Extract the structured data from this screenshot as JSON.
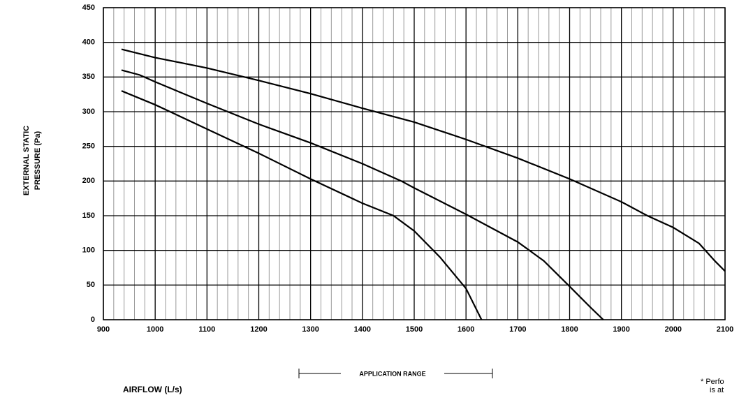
{
  "chart_data": {
    "type": "line",
    "ylabel": [
      "EXTERNAL STATIC",
      "PRESSURE (Pa)"
    ],
    "xlabel": "AIRFLOW (L/s)",
    "annotation": "APPLICATION RANGE",
    "footnote": [
      "* Perfo",
      "is at"
    ],
    "xlim": [
      900,
      2100
    ],
    "ylim": [
      0,
      450
    ],
    "xticks": [
      900,
      1000,
      1100,
      1200,
      1300,
      1400,
      1500,
      1600,
      1700,
      1800,
      1900,
      2000,
      2100
    ],
    "xminorticks": [
      920,
      940,
      960,
      980,
      1020,
      1040,
      1060,
      1080,
      1120,
      1140,
      1160,
      1180,
      1220,
      1240,
      1260,
      1280,
      1320,
      1340,
      1360,
      1380,
      1420,
      1440,
      1460,
      1480,
      1520,
      1540,
      1560,
      1580,
      1620,
      1640,
      1660,
      1680,
      1720,
      1740,
      1760,
      1780,
      1820,
      1840,
      1860,
      1880,
      1920,
      1940,
      1960,
      1980,
      2020,
      2040,
      2060,
      2080
    ],
    "yticks": [
      0,
      50,
      100,
      150,
      200,
      250,
      300,
      350,
      400,
      450
    ],
    "grid": true,
    "series": [
      {
        "color": "#000000",
        "x": [
          935,
          1000,
          1100,
          1200,
          1300,
          1400,
          1500,
          1600,
          1700,
          1800,
          1900,
          1950,
          2000,
          2050,
          2080,
          2100
        ],
        "values": [
          390,
          378,
          363,
          345,
          326,
          305,
          285,
          260,
          233,
          203,
          170,
          150,
          133,
          110,
          85,
          70
        ]
      },
      {
        "color": "#000000",
        "x": [
          935,
          970,
          1000,
          1100,
          1200,
          1300,
          1400,
          1475,
          1500,
          1600,
          1700,
          1750,
          1800,
          1840,
          1865
        ],
        "values": [
          360,
          353,
          343,
          312,
          282,
          255,
          225,
          200,
          190,
          152,
          112,
          85,
          48,
          18,
          0
        ]
      },
      {
        "color": "#000000",
        "x": [
          935,
          1000,
          1100,
          1200,
          1300,
          1400,
          1460,
          1500,
          1550,
          1600,
          1630
        ],
        "values": [
          330,
          310,
          275,
          240,
          203,
          168,
          150,
          128,
          90,
          45,
          0
        ]
      }
    ]
  }
}
